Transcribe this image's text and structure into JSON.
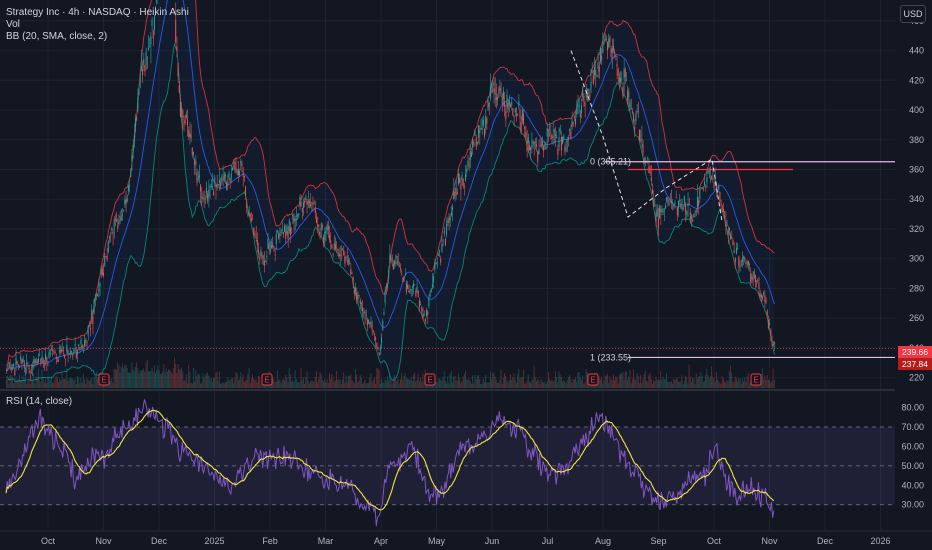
{
  "header": {
    "symbol_line": "Strategy Inc · 4h · NASDAQ · Heikin Ashi",
    "vol_label": "Vol",
    "bb_label": "BB (20, SMA, close, 2)",
    "rsi_label": "RSI (14, close)",
    "currency_button": "USD"
  },
  "colors": {
    "background": "#131722",
    "up_candle": "#26a69a",
    "down_candle": "#ef5350",
    "bb_band": "#f23645",
    "bb_basis": "#2962ff",
    "rsi_line": "#7e57c2",
    "rsi_ma": "#f0e63c",
    "fib_line": "#e1bee7",
    "price_tag_red": "#f23645"
  },
  "chart_data": [
    {
      "type": "candlestick",
      "title": "Strategy Inc · 4h · NASDAQ · Heikin Ashi",
      "y_ticks": [
        220,
        240,
        260,
        280,
        300,
        320,
        340,
        360,
        380,
        400,
        420,
        440,
        460
      ],
      "ylim": [
        213,
        472
      ],
      "x_ticks": [
        "Oct",
        "Nov",
        "Dec",
        "2025",
        "Feb",
        "Mar",
        "Apr",
        "May",
        "Jun",
        "Jul",
        "Aug",
        "Sep",
        "Oct",
        "Nov",
        "Dec",
        "2026"
      ],
      "price_anchors": [
        [
          0,
          226
        ],
        [
          6,
          238
        ],
        [
          10,
          330
        ],
        [
          12,
          440
        ],
        [
          14,
          520
        ],
        [
          15,
          400
        ],
        [
          17,
          345
        ],
        [
          20,
          360
        ],
        [
          21,
          330
        ],
        [
          22,
          300
        ],
        [
          24,
          320
        ],
        [
          26,
          340
        ],
        [
          27,
          320
        ],
        [
          29,
          300
        ],
        [
          31,
          260
        ],
        [
          32,
          240
        ],
        [
          33,
          300
        ],
        [
          35,
          280
        ],
        [
          36,
          260
        ],
        [
          37,
          300
        ],
        [
          39,
          350
        ],
        [
          41,
          390
        ],
        [
          42,
          412
        ],
        [
          43,
          405
        ],
        [
          44,
          395
        ],
        [
          45,
          372
        ],
        [
          47,
          382
        ],
        [
          48,
          377
        ],
        [
          49,
          398
        ],
        [
          51,
          432
        ],
        [
          51.5,
          450
        ],
        [
          52,
          445
        ],
        [
          53,
          420
        ],
        [
          54,
          398
        ],
        [
          55,
          365
        ],
        [
          56,
          328
        ],
        [
          57,
          340
        ],
        [
          58,
          335
        ],
        [
          59,
          330
        ],
        [
          60,
          352
        ],
        [
          60.5,
          363
        ],
        [
          61,
          348
        ],
        [
          62,
          320
        ],
        [
          63,
          300
        ],
        [
          64,
          290
        ],
        [
          65,
          275
        ],
        [
          66,
          240
        ]
      ],
      "last_price_tags": [
        239.66,
        237.84
      ],
      "event_markers": [
        {
          "label": "E",
          "month": 1.0
        },
        {
          "label": "E",
          "month": 4.0
        },
        {
          "label": "E",
          "month": 7.0
        },
        {
          "label": "E",
          "month": 10.0
        },
        {
          "label": "E",
          "month": 13.0
        }
      ],
      "fibonacci": {
        "level_0_label": "0 (365.21)",
        "level_0_value": 365.21,
        "level_1_label": "1 (233.55)",
        "level_1_value": 233.55
      },
      "resistance_line": 360
    },
    {
      "type": "line",
      "title": "RSI (14, close)",
      "y_ticks": [
        30,
        40,
        50,
        60,
        70,
        80
      ],
      "ylim": [
        17,
        88
      ],
      "band": [
        30,
        70
      ],
      "midline": 50,
      "rsi_anchors": [
        [
          0,
          40
        ],
        [
          3,
          72
        ],
        [
          5,
          58
        ],
        [
          6,
          45
        ],
        [
          8,
          55
        ],
        [
          10,
          68
        ],
        [
          11,
          75
        ],
        [
          12,
          80
        ],
        [
          14,
          68
        ],
        [
          15,
          58
        ],
        [
          18,
          45
        ],
        [
          19,
          40
        ],
        [
          22,
          55
        ],
        [
          24,
          55
        ],
        [
          27,
          45
        ],
        [
          29,
          40
        ],
        [
          31,
          30
        ],
        [
          32,
          25
        ],
        [
          33,
          50
        ],
        [
          35,
          60
        ],
        [
          36,
          40
        ],
        [
          37,
          35
        ],
        [
          39,
          55
        ],
        [
          41,
          65
        ],
        [
          43,
          74
        ],
        [
          44,
          70
        ],
        [
          45,
          55
        ],
        [
          47,
          45
        ],
        [
          48,
          50
        ],
        [
          49,
          58
        ],
        [
          51,
          75
        ],
        [
          52,
          70
        ],
        [
          53,
          55
        ],
        [
          54,
          48
        ],
        [
          55,
          40
        ],
        [
          56,
          32
        ],
        [
          58,
          38
        ],
        [
          60,
          45
        ],
        [
          61,
          60
        ],
        [
          62,
          40
        ],
        [
          63,
          35
        ],
        [
          64,
          38
        ],
        [
          65,
          35
        ],
        [
          66,
          27
        ]
      ]
    }
  ]
}
